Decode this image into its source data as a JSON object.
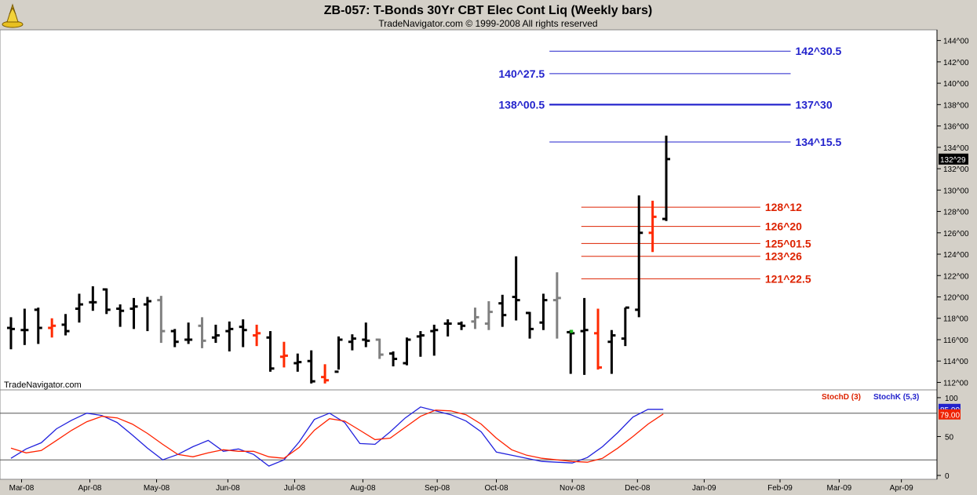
{
  "header": {
    "title": "ZB-057:  T-Bonds 30Yr CBT Elec Cont Liq  (Weekly bars)",
    "subtitle": "TradeNavigator.com © 1999-2008 All rights reserved",
    "logo_icon": "trade-navigator-logo-icon",
    "watermark": "TradeNavigator.com"
  },
  "colors": {
    "background": "#d4d0c8",
    "plot": "#ffffff",
    "up": "#000000",
    "down_red": "#ff2a00",
    "neutral_gray": "#808080",
    "blue_level": "#2222cc",
    "red_level": "#dd2200",
    "stochD": "#ff2200",
    "stochK": "#2222dd",
    "green_marker": "#22bb22"
  },
  "chart_data": [
    {
      "type": "bar",
      "name": "price",
      "ylim": [
        111.3,
        145
      ],
      "y_ticks": [
        112,
        114,
        116,
        118,
        120,
        122,
        124,
        126,
        128,
        130,
        132,
        134,
        136,
        138,
        140,
        142,
        144
      ],
      "y_tick_labels": [
        "112^00",
        "114^00",
        "116^00",
        "118^00",
        "120^00",
        "122^00",
        "124^00",
        "126^00",
        "128^00",
        "130^00",
        "132^00",
        "134^00",
        "136^00",
        "138^00",
        "140^00",
        "142^00",
        "144^00"
      ],
      "x_labels": [
        {
          "label": "Mar-08",
          "week": 1.5
        },
        {
          "label": "Apr-08",
          "week": 6.0
        },
        {
          "label": "May-08",
          "week": 10.4
        },
        {
          "label": "Jun-08",
          "week": 15.1
        },
        {
          "label": "Jul-08",
          "week": 19.5
        },
        {
          "label": "Aug-08",
          "week": 24.0
        },
        {
          "label": "Sep-08",
          "week": 28.9
        },
        {
          "label": "Oct-08",
          "week": 32.8
        },
        {
          "label": "Nov-08",
          "week": 37.8
        },
        {
          "label": "Dec-08",
          "week": 42.1
        },
        {
          "label": "Jan-09",
          "week": 46.5
        },
        {
          "label": "Feb-09",
          "week": 51.5
        },
        {
          "label": "Mar-09",
          "week": 55.4
        },
        {
          "label": "Apr-09",
          "week": 59.5
        }
      ],
      "last_price": 132.9,
      "last_price_label": "132^29",
      "bars": [
        {
          "w": 0.8,
          "o": 117.1,
          "h": 118.1,
          "l": 115.1,
          "c": 117.0,
          "k": "u"
        },
        {
          "w": 1.7,
          "o": 116.9,
          "h": 118.9,
          "l": 115.5,
          "c": 116.9,
          "k": "u"
        },
        {
          "w": 2.6,
          "o": 118.8,
          "h": 119.0,
          "l": 115.6,
          "c": 117.1,
          "k": "u"
        },
        {
          "w": 3.5,
          "o": 117.1,
          "h": 118.0,
          "l": 116.2,
          "c": 117.3,
          "k": "r"
        },
        {
          "w": 4.4,
          "o": 117.4,
          "h": 118.4,
          "l": 116.4,
          "c": 116.8,
          "k": "u"
        },
        {
          "w": 5.3,
          "o": 118.9,
          "h": 120.3,
          "l": 117.6,
          "c": 119.3,
          "k": "u"
        },
        {
          "w": 6.2,
          "o": 119.5,
          "h": 121.0,
          "l": 118.7,
          "c": 119.5,
          "k": "u"
        },
        {
          "w": 7.1,
          "o": 120.7,
          "h": 120.8,
          "l": 118.4,
          "c": 118.8,
          "k": "u"
        },
        {
          "w": 8.0,
          "o": 118.9,
          "h": 119.3,
          "l": 117.2,
          "c": 118.7,
          "k": "u"
        },
        {
          "w": 8.9,
          "o": 118.9,
          "h": 119.9,
          "l": 117.0,
          "c": 119.1,
          "k": "u"
        },
        {
          "w": 9.8,
          "o": 119.3,
          "h": 120.0,
          "l": 116.8,
          "c": 119.6,
          "k": "u"
        },
        {
          "w": 10.7,
          "o": 119.7,
          "h": 120.1,
          "l": 115.7,
          "c": 116.8,
          "k": "g"
        },
        {
          "w": 11.6,
          "o": 116.8,
          "h": 117.0,
          "l": 115.3,
          "c": 115.8,
          "k": "u"
        },
        {
          "w": 12.5,
          "o": 116.0,
          "h": 117.6,
          "l": 115.6,
          "c": 116.0,
          "k": "u"
        },
        {
          "w": 13.4,
          "o": 117.3,
          "h": 118.1,
          "l": 115.2,
          "c": 115.9,
          "k": "g"
        },
        {
          "w": 14.3,
          "o": 116.2,
          "h": 117.4,
          "l": 115.7,
          "c": 116.4,
          "k": "u"
        },
        {
          "w": 15.2,
          "o": 116.8,
          "h": 117.7,
          "l": 114.9,
          "c": 117.0,
          "k": "u"
        },
        {
          "w": 16.1,
          "o": 117.2,
          "h": 117.9,
          "l": 115.3,
          "c": 116.9,
          "k": "u"
        },
        {
          "w": 17.0,
          "o": 116.4,
          "h": 117.4,
          "l": 115.4,
          "c": 116.6,
          "k": "r"
        },
        {
          "w": 17.9,
          "o": 116.2,
          "h": 116.8,
          "l": 113.0,
          "c": 113.3,
          "k": "u"
        },
        {
          "w": 18.8,
          "o": 114.4,
          "h": 115.8,
          "l": 113.4,
          "c": 114.5,
          "k": "r"
        },
        {
          "w": 19.7,
          "o": 113.8,
          "h": 114.7,
          "l": 113.0,
          "c": 113.9,
          "k": "u"
        },
        {
          "w": 20.6,
          "o": 114.0,
          "h": 115.0,
          "l": 111.9,
          "c": 112.1,
          "k": "u"
        },
        {
          "w": 21.5,
          "o": 112.5,
          "h": 113.7,
          "l": 111.9,
          "c": 112.2,
          "k": "r"
        },
        {
          "w": 22.4,
          "o": 113.0,
          "h": 116.3,
          "l": 113.2,
          "c": 116.0,
          "k": "u"
        },
        {
          "w": 23.3,
          "o": 115.8,
          "h": 116.5,
          "l": 115.0,
          "c": 116.1,
          "k": "u"
        },
        {
          "w": 24.2,
          "o": 116.0,
          "h": 117.6,
          "l": 115.3,
          "c": 115.9,
          "k": "u"
        },
        {
          "w": 25.1,
          "o": 116.0,
          "h": 116.1,
          "l": 114.2,
          "c": 114.6,
          "k": "g"
        },
        {
          "w": 26.0,
          "o": 114.7,
          "h": 114.9,
          "l": 113.5,
          "c": 114.2,
          "k": "u"
        },
        {
          "w": 26.9,
          "o": 113.8,
          "h": 116.2,
          "l": 113.6,
          "c": 116.0,
          "k": "u"
        },
        {
          "w": 27.8,
          "o": 116.3,
          "h": 116.8,
          "l": 114.4,
          "c": 116.4,
          "k": "u"
        },
        {
          "w": 28.7,
          "o": 116.8,
          "h": 117.4,
          "l": 114.5,
          "c": 116.9,
          "k": "u"
        },
        {
          "w": 29.6,
          "o": 117.5,
          "h": 117.9,
          "l": 116.3,
          "c": 117.5,
          "k": "u"
        },
        {
          "w": 30.5,
          "o": 117.5,
          "h": 117.7,
          "l": 116.9,
          "c": 117.3,
          "k": "u"
        },
        {
          "w": 31.4,
          "o": 117.7,
          "h": 119.0,
          "l": 117.0,
          "c": 118.1,
          "k": "g"
        },
        {
          "w": 32.3,
          "o": 117.5,
          "h": 119.6,
          "l": 116.9,
          "c": 118.6,
          "k": "g"
        },
        {
          "w": 33.2,
          "o": 119.4,
          "h": 120.2,
          "l": 117.2,
          "c": 118.3,
          "k": "u"
        },
        {
          "w": 34.1,
          "o": 120.0,
          "h": 123.8,
          "l": 117.8,
          "c": 119.7,
          "k": "u"
        },
        {
          "w": 35.0,
          "o": 118.5,
          "h": 118.6,
          "l": 116.1,
          "c": 117.0,
          "k": "u"
        },
        {
          "w": 35.9,
          "o": 117.6,
          "h": 120.3,
          "l": 116.9,
          "c": 119.7,
          "k": "u"
        },
        {
          "w": 36.8,
          "o": 119.7,
          "h": 122.3,
          "l": 116.1,
          "c": 119.9,
          "k": "g"
        },
        {
          "w": 37.7,
          "o": 116.7,
          "h": 116.9,
          "l": 112.8,
          "c": 116.6,
          "k": "u"
        },
        {
          "w": 38.6,
          "o": 116.8,
          "h": 119.9,
          "l": 112.7,
          "c": 116.9,
          "k": "u"
        },
        {
          "w": 39.5,
          "o": 116.6,
          "h": 118.9,
          "l": 113.2,
          "c": 113.4,
          "k": "r"
        },
        {
          "w": 40.4,
          "o": 115.8,
          "h": 116.9,
          "l": 112.8,
          "c": 116.4,
          "k": "u"
        },
        {
          "w": 41.3,
          "o": 116.1,
          "h": 119.0,
          "l": 115.4,
          "c": 119.0,
          "k": "u"
        },
        {
          "w": 42.2,
          "o": 118.8,
          "h": 129.5,
          "l": 118.1,
          "c": 126.0,
          "k": "u"
        },
        {
          "w": 43.1,
          "o": 126.0,
          "h": 129.0,
          "l": 124.2,
          "c": 127.5,
          "k": "r"
        },
        {
          "w": 44.0,
          "o": 127.3,
          "h": 135.1,
          "l": 127.1,
          "c": 132.9,
          "k": "u"
        }
      ]
    },
    {
      "type": "line",
      "name": "stochastics",
      "ylim": [
        -5,
        110
      ],
      "y_ticks": [
        0,
        50,
        100
      ],
      "y_tick_labels": [
        "0",
        "50",
        "100"
      ],
      "reference_lines": [
        80,
        20
      ],
      "legend": [
        "StochD (3)",
        "StochK (5,3)"
      ],
      "last_values": {
        "stochD": "79.00",
        "stochK": "85.00"
      },
      "series": [
        {
          "name": "StochD (3)",
          "values": [
            35,
            29,
            32,
            45,
            58,
            69,
            76,
            74,
            66,
            54,
            40,
            27,
            24,
            29,
            33,
            31,
            31,
            24,
            22,
            36,
            58,
            73,
            70,
            58,
            46,
            48,
            62,
            76,
            84,
            83,
            78,
            66,
            48,
            33,
            26,
            22,
            20,
            18,
            17,
            22,
            35,
            50,
            66,
            79
          ]
        },
        {
          "name": "StochK (5,3)",
          "values": [
            22,
            34,
            42,
            60,
            71,
            80,
            77,
            68,
            52,
            35,
            20,
            27,
            37,
            45,
            31,
            34,
            27,
            12,
            20,
            43,
            72,
            80,
            68,
            41,
            40,
            56,
            74,
            88,
            83,
            78,
            70,
            56,
            30,
            26,
            22,
            18,
            17,
            16,
            23,
            37,
            55,
            75,
            85,
            85
          ]
        }
      ]
    }
  ],
  "levels": {
    "blue": [
      {
        "value": 143.0,
        "x1": 36.3,
        "x2": 52.2,
        "label": "142^30.5",
        "label_side": "right",
        "width": 1
      },
      {
        "value": 140.9,
        "x1": 36.3,
        "x2": 52.2,
        "label": "140^27.5",
        "label_side": "left",
        "width": 1
      },
      {
        "value": 138.0,
        "x1": 36.3,
        "x2": 52.2,
        "label": "138^00.5",
        "label_side": "left",
        "width": 2
      },
      {
        "value": 138.0,
        "x1": 36.3,
        "x2": 52.2,
        "label": "137^30",
        "label_side": "right",
        "width": 2
      },
      {
        "value": 134.5,
        "x1": 36.3,
        "x2": 52.2,
        "label": "134^15.5",
        "label_side": "right",
        "width": 1
      }
    ],
    "red": [
      {
        "value": 128.4,
        "x1": 38.4,
        "x2": 50.2,
        "label": "128^12"
      },
      {
        "value": 126.6,
        "x1": 38.4,
        "x2": 50.2,
        "label": "126^20"
      },
      {
        "value": 125.0,
        "x1": 38.4,
        "x2": 50.2,
        "label": "125^01.5"
      },
      {
        "value": 123.8,
        "x1": 38.4,
        "x2": 50.2,
        "label": "123^26"
      },
      {
        "value": 121.7,
        "x1": 38.4,
        "x2": 50.2,
        "label": "121^22.5"
      }
    ]
  }
}
